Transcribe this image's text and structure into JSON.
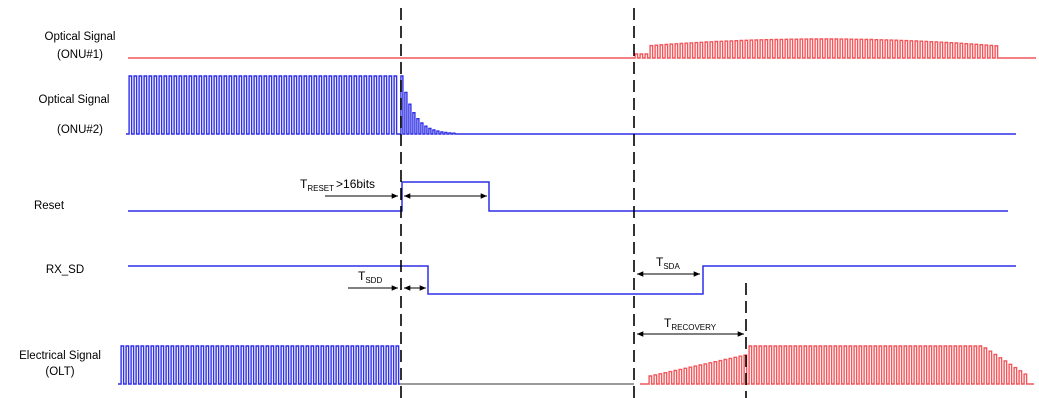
{
  "colors": {
    "onu1": "#f2565a",
    "blue": "#2f2fe6",
    "gray": "#7a7a7a",
    "electrical_red": "#f2565a",
    "black": "#000000"
  },
  "signals": {
    "optical_onu1": {
      "line1": "Optical Signal",
      "line2": "(ONU#1)"
    },
    "optical_onu2": {
      "line1": "Optical Signal",
      "line2": "(ONU#2)"
    },
    "reset": {
      "label": "Reset"
    },
    "rx_sd": {
      "label": "RX_SD"
    },
    "electrical": {
      "line1": "Electrical Signal",
      "line2": "(OLT)"
    }
  },
  "timing": {
    "t_reset": {
      "symbol": "T",
      "sub": "RESET",
      "suffix": ">16bits"
    },
    "t_sdd": {
      "symbol": "T",
      "sub": "SDD"
    },
    "t_sda": {
      "symbol": "T",
      "sub": "SDA"
    },
    "t_recovery": {
      "symbol": "T",
      "sub": "RECOVERY"
    }
  }
}
